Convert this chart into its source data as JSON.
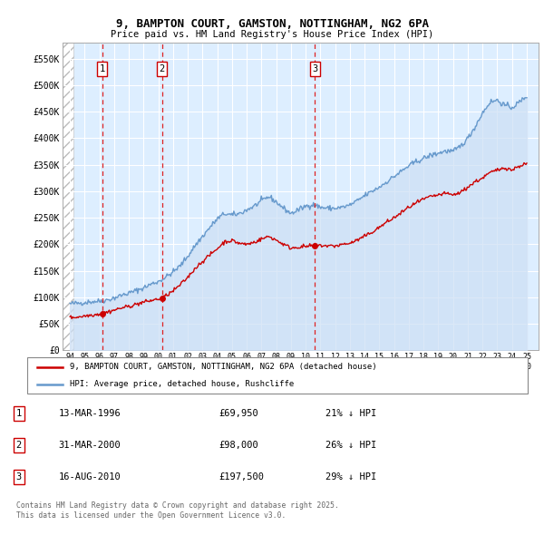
{
  "title_line1": "9, BAMPTON COURT, GAMSTON, NOTTINGHAM, NG2 6PA",
  "title_line2": "Price paid vs. HM Land Registry's House Price Index (HPI)",
  "background_color": "#ffffff",
  "plot_bg_color": "#ddeeff",
  "sale_points": [
    {
      "date_num": 1996.19,
      "price": 69950,
      "label": "1"
    },
    {
      "date_num": 2000.24,
      "price": 98000,
      "label": "2"
    },
    {
      "date_num": 2010.62,
      "price": 197500,
      "label": "3"
    }
  ],
  "legend_line1": "9, BAMPTON COURT, GAMSTON, NOTTINGHAM, NG2 6PA (detached house)",
  "legend_line2": "HPI: Average price, detached house, Rushcliffe",
  "table_rows": [
    {
      "num": "1",
      "date": "13-MAR-1996",
      "price": "£69,950",
      "pct": "21% ↓ HPI"
    },
    {
      "num": "2",
      "date": "31-MAR-2000",
      "price": "£98,000",
      "pct": "26% ↓ HPI"
    },
    {
      "num": "3",
      "date": "16-AUG-2010",
      "price": "£197,500",
      "pct": "29% ↓ HPI"
    }
  ],
  "footnote": "Contains HM Land Registry data © Crown copyright and database right 2025.\nThis data is licensed under the Open Government Licence v3.0.",
  "xmin": 1993.5,
  "xmax": 2025.8,
  "ymin": 0,
  "ymax": 580000,
  "yticks": [
    0,
    50000,
    100000,
    150000,
    200000,
    250000,
    300000,
    350000,
    400000,
    450000,
    500000,
    550000
  ],
  "ytick_labels": [
    "£0",
    "£50K",
    "£100K",
    "£150K",
    "£200K",
    "£250K",
    "£300K",
    "£350K",
    "£400K",
    "£450K",
    "£500K",
    "£550K"
  ],
  "hpi_anchors": [
    [
      1994.0,
      88000
    ],
    [
      1994.5,
      89000
    ],
    [
      1995.0,
      90500
    ],
    [
      1995.5,
      92000
    ],
    [
      1996.0,
      93000
    ],
    [
      1996.5,
      95000
    ],
    [
      1997.0,
      99000
    ],
    [
      1997.5,
      104000
    ],
    [
      1998.0,
      108000
    ],
    [
      1998.5,
      113000
    ],
    [
      1999.0,
      118000
    ],
    [
      1999.5,
      125000
    ],
    [
      2000.0,
      130000
    ],
    [
      2000.5,
      138000
    ],
    [
      2001.0,
      148000
    ],
    [
      2001.5,
      160000
    ],
    [
      2002.0,
      178000
    ],
    [
      2002.5,
      198000
    ],
    [
      2003.0,
      215000
    ],
    [
      2003.5,
      232000
    ],
    [
      2004.0,
      248000
    ],
    [
      2004.5,
      258000
    ],
    [
      2005.0,
      255000
    ],
    [
      2005.5,
      258000
    ],
    [
      2006.0,
      265000
    ],
    [
      2006.5,
      272000
    ],
    [
      2007.0,
      282000
    ],
    [
      2007.5,
      290000
    ],
    [
      2008.0,
      280000
    ],
    [
      2008.5,
      268000
    ],
    [
      2009.0,
      258000
    ],
    [
      2009.5,
      265000
    ],
    [
      2010.0,
      272000
    ],
    [
      2010.5,
      275000
    ],
    [
      2011.0,
      270000
    ],
    [
      2011.5,
      268000
    ],
    [
      2012.0,
      268000
    ],
    [
      2012.5,
      270000
    ],
    [
      2013.0,
      274000
    ],
    [
      2013.5,
      282000
    ],
    [
      2014.0,
      292000
    ],
    [
      2014.5,
      300000
    ],
    [
      2015.0,
      308000
    ],
    [
      2015.5,
      318000
    ],
    [
      2016.0,
      328000
    ],
    [
      2016.5,
      338000
    ],
    [
      2017.0,
      348000
    ],
    [
      2017.5,
      356000
    ],
    [
      2018.0,
      362000
    ],
    [
      2018.5,
      368000
    ],
    [
      2019.0,
      372000
    ],
    [
      2019.5,
      376000
    ],
    [
      2020.0,
      375000
    ],
    [
      2020.5,
      385000
    ],
    [
      2021.0,
      400000
    ],
    [
      2021.5,
      422000
    ],
    [
      2022.0,
      448000
    ],
    [
      2022.5,
      468000
    ],
    [
      2023.0,
      472000
    ],
    [
      2023.5,
      462000
    ],
    [
      2024.0,
      458000
    ],
    [
      2024.5,
      468000
    ],
    [
      2025.0,
      480000
    ]
  ],
  "prop_anchors": [
    [
      1994.0,
      62000
    ],
    [
      1994.5,
      63000
    ],
    [
      1995.0,
      65000
    ],
    [
      1995.5,
      67000
    ],
    [
      1996.0,
      68500
    ],
    [
      1996.19,
      69950
    ],
    [
      1996.5,
      72000
    ],
    [
      1997.0,
      76000
    ],
    [
      1997.5,
      80000
    ],
    [
      1998.0,
      83000
    ],
    [
      1998.5,
      87000
    ],
    [
      1999.0,
      91000
    ],
    [
      1999.5,
      94000
    ],
    [
      2000.0,
      97000
    ],
    [
      2000.24,
      98000
    ],
    [
      2000.5,
      103000
    ],
    [
      2001.0,
      112000
    ],
    [
      2001.5,
      124000
    ],
    [
      2002.0,
      138000
    ],
    [
      2002.5,
      155000
    ],
    [
      2003.0,
      168000
    ],
    [
      2003.5,
      180000
    ],
    [
      2004.0,
      192000
    ],
    [
      2004.5,
      205000
    ],
    [
      2005.0,
      207000
    ],
    [
      2005.5,
      202000
    ],
    [
      2006.0,
      200000
    ],
    [
      2006.5,
      204000
    ],
    [
      2007.0,
      210000
    ],
    [
      2007.5,
      215000
    ],
    [
      2008.0,
      208000
    ],
    [
      2008.5,
      200000
    ],
    [
      2009.0,
      193000
    ],
    [
      2009.5,
      195000
    ],
    [
      2010.0,
      196000
    ],
    [
      2010.62,
      197500
    ],
    [
      2011.0,
      198000
    ],
    [
      2011.5,
      197000
    ],
    [
      2012.0,
      197000
    ],
    [
      2012.5,
      200000
    ],
    [
      2013.0,
      202000
    ],
    [
      2013.5,
      208000
    ],
    [
      2014.0,
      215000
    ],
    [
      2014.5,
      223000
    ],
    [
      2015.0,
      232000
    ],
    [
      2015.5,
      242000
    ],
    [
      2016.0,
      250000
    ],
    [
      2016.5,
      260000
    ],
    [
      2017.0,
      270000
    ],
    [
      2017.5,
      278000
    ],
    [
      2018.0,
      285000
    ],
    [
      2018.5,
      290000
    ],
    [
      2019.0,
      293000
    ],
    [
      2019.5,
      296000
    ],
    [
      2020.0,
      293000
    ],
    [
      2020.5,
      298000
    ],
    [
      2021.0,
      308000
    ],
    [
      2021.5,
      318000
    ],
    [
      2022.0,
      325000
    ],
    [
      2022.5,
      335000
    ],
    [
      2023.0,
      340000
    ],
    [
      2023.5,
      345000
    ],
    [
      2024.0,
      340000
    ],
    [
      2024.5,
      348000
    ],
    [
      2025.0,
      352000
    ]
  ]
}
